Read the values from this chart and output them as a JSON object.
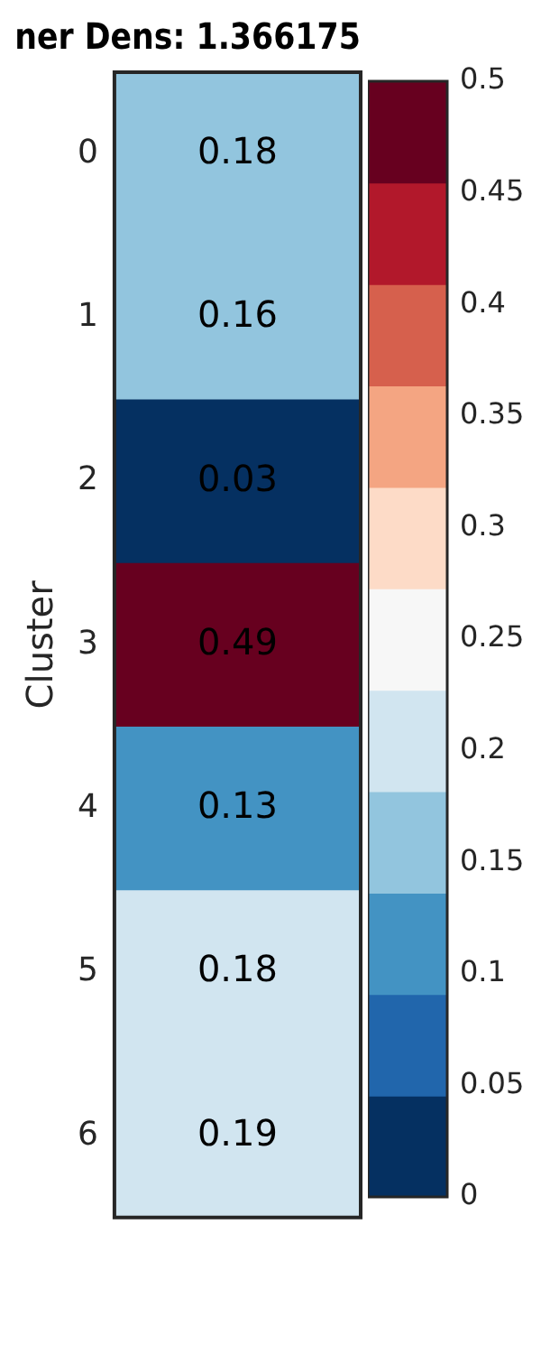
{
  "chart_data": {
    "type": "heatmap",
    "title": "ner Dens: 1.366175",
    "ylabel": "Cluster",
    "categories": [
      null
    ],
    "y_categories": [
      "0",
      "1",
      "2",
      "3",
      "4",
      "5",
      "6"
    ],
    "cells": [
      [
        0.18
      ],
      [
        0.16
      ],
      [
        0.03
      ],
      [
        0.49
      ],
      [
        0.13
      ],
      [
        0.182
      ],
      [
        0.19
      ]
    ],
    "cell_labels": [
      [
        "0.18"
      ],
      [
        "0.16"
      ],
      [
        "0.03"
      ],
      [
        "0.49"
      ],
      [
        "0.13"
      ],
      [
        "0.18"
      ],
      [
        "0.19"
      ]
    ],
    "clim": [
      0,
      0.5
    ],
    "cticks": [
      0,
      0.05,
      0.1,
      0.15,
      0.2,
      0.25,
      0.3,
      0.35,
      0.4,
      0.45,
      0.5
    ],
    "grid": false,
    "legend": false
  }
}
